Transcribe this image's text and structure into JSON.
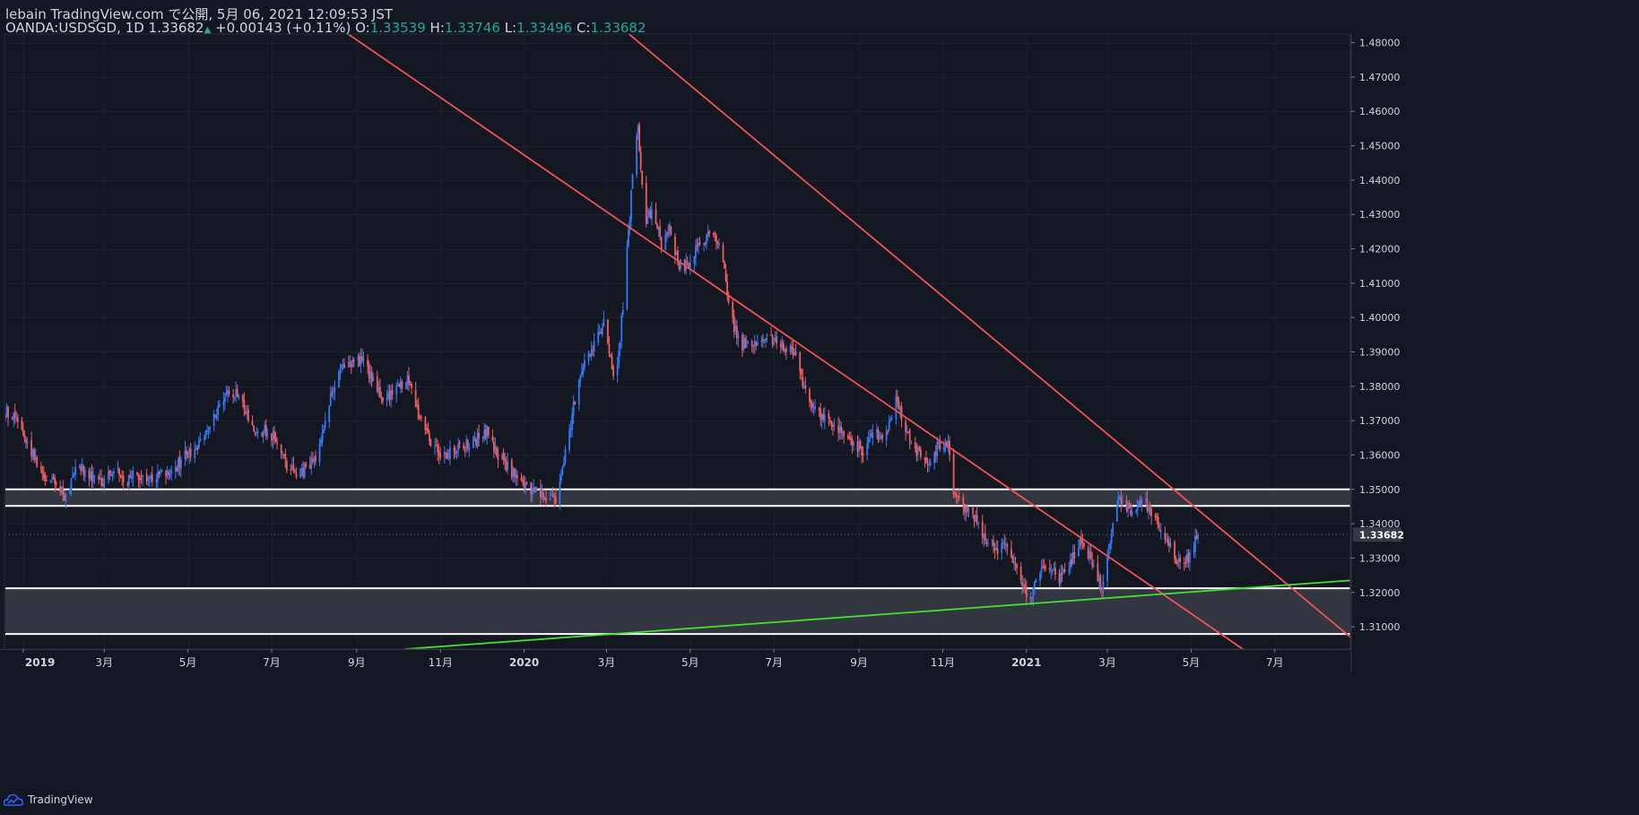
{
  "header": {
    "publish_line": "lebain TradingView.com で公開, 5月 06, 2021 12:09:53 JST",
    "symbol_interval": "OANDA:USDSGD, 1D",
    "last_price": "1.33682",
    "change": "+0.00143 (+0.11%)",
    "o_label": "O:",
    "o_value": "1.33539",
    "h_label": "H:",
    "h_value": "1.33746",
    "l_label": "L:",
    "l_value": "1.33496",
    "c_label": "C:",
    "c_value": "1.33682"
  },
  "footer": {
    "brand": "TradingView"
  },
  "colors": {
    "background": "#131722",
    "up_candle": "#3179f5",
    "down_candle": "#f05d5e",
    "channel_line": "#f05350",
    "support_line": "#43e033",
    "zone_fill": "#363a45",
    "zone_border": "#ffffff",
    "axis_text": "#d1d4dc"
  },
  "chart_data": {
    "type": "candlestick",
    "symbol": "OANDA:USDSGD",
    "interval": "1D",
    "ylim": [
      1.3035,
      1.4825
    ],
    "xlim": [
      "2018-12-19",
      "2021-08-25"
    ],
    "y_ticks": [
      "1.31000",
      "1.32000",
      "1.33000",
      "1.34000",
      "1.35000",
      "1.36000",
      "1.37000",
      "1.38000",
      "1.39000",
      "1.40000",
      "1.41000",
      "1.42000",
      "1.43000",
      "1.44000",
      "1.45000",
      "1.46000",
      "1.47000",
      "1.48000"
    ],
    "last_price_label": "1.33682",
    "x_ticks": [
      {
        "date": "2019-01-01",
        "label": "2019"
      },
      {
        "date": "2019-03-01",
        "label": "3月"
      },
      {
        "date": "2019-05-01",
        "label": "5月"
      },
      {
        "date": "2019-07-01",
        "label": "7月"
      },
      {
        "date": "2019-09-01",
        "label": "9月"
      },
      {
        "date": "2019-11-01",
        "label": "11月"
      },
      {
        "date": "2020-01-01",
        "label": "2020"
      },
      {
        "date": "2020-03-01",
        "label": "3月"
      },
      {
        "date": "2020-05-01",
        "label": "5月"
      },
      {
        "date": "2020-07-01",
        "label": "7月"
      },
      {
        "date": "2020-09-01",
        "label": "9月"
      },
      {
        "date": "2020-11-01",
        "label": "11月"
      },
      {
        "date": "2021-01-01",
        "label": "2021"
      },
      {
        "date": "2021-03-01",
        "label": "3月"
      },
      {
        "date": "2021-05-01",
        "label": "5月"
      },
      {
        "date": "2021-07-01",
        "label": "7月"
      }
    ],
    "close_path": [
      [
        "2018-12-19",
        1.373
      ],
      [
        "2018-12-27",
        1.371
      ],
      [
        "2019-01-04",
        1.364
      ],
      [
        "2019-01-12",
        1.356
      ],
      [
        "2019-01-20",
        1.353
      ],
      [
        "2019-02-01",
        1.348
      ],
      [
        "2019-02-10",
        1.357
      ],
      [
        "2019-02-18",
        1.354
      ],
      [
        "2019-02-28",
        1.351
      ],
      [
        "2019-03-08",
        1.357
      ],
      [
        "2019-03-16",
        1.353
      ],
      [
        "2019-03-24",
        1.354
      ],
      [
        "2019-04-01",
        1.352
      ],
      [
        "2019-04-10",
        1.355
      ],
      [
        "2019-04-20",
        1.355
      ],
      [
        "2019-04-28",
        1.36
      ],
      [
        "2019-05-08",
        1.362
      ],
      [
        "2019-05-18",
        1.369
      ],
      [
        "2019-05-26",
        1.377
      ],
      [
        "2019-06-06",
        1.378
      ],
      [
        "2019-06-16",
        1.368
      ],
      [
        "2019-06-26",
        1.367
      ],
      [
        "2019-07-04",
        1.364
      ],
      [
        "2019-07-12",
        1.357
      ],
      [
        "2019-07-20",
        1.355
      ],
      [
        "2019-07-28",
        1.356
      ],
      [
        "2019-08-05",
        1.362
      ],
      [
        "2019-08-13",
        1.377
      ],
      [
        "2019-08-21",
        1.385
      ],
      [
        "2019-08-29",
        1.387
      ],
      [
        "2019-09-06",
        1.388
      ],
      [
        "2019-09-14",
        1.38
      ],
      [
        "2019-09-22",
        1.375
      ],
      [
        "2019-09-30",
        1.38
      ],
      [
        "2019-10-08",
        1.382
      ],
      [
        "2019-10-16",
        1.372
      ],
      [
        "2019-10-26",
        1.362
      ],
      [
        "2019-11-05",
        1.36
      ],
      [
        "2019-11-15",
        1.362
      ],
      [
        "2019-11-25",
        1.364
      ],
      [
        "2019-12-05",
        1.367
      ],
      [
        "2019-12-13",
        1.36
      ],
      [
        "2019-12-21",
        1.356
      ],
      [
        "2019-12-31",
        1.351
      ],
      [
        "2020-01-08",
        1.35
      ],
      [
        "2020-01-16",
        1.347
      ],
      [
        "2020-01-24",
        1.347
      ],
      [
        "2020-02-01",
        1.362
      ],
      [
        "2020-02-09",
        1.381
      ],
      [
        "2020-02-15",
        1.388
      ],
      [
        "2020-02-22",
        1.393
      ],
      [
        "2020-02-28",
        1.399
      ],
      [
        "2020-03-06",
        1.382
      ],
      [
        "2020-03-10",
        1.389
      ],
      [
        "2020-03-14",
        1.409
      ],
      [
        "2020-03-18",
        1.43
      ],
      [
        "2020-03-21",
        1.447
      ],
      [
        "2020-03-24",
        1.455
      ],
      [
        "2020-03-29",
        1.427
      ],
      [
        "2020-04-04",
        1.432
      ],
      [
        "2020-04-10",
        1.421
      ],
      [
        "2020-04-16",
        1.426
      ],
      [
        "2020-04-22",
        1.416
      ],
      [
        "2020-04-29",
        1.415
      ],
      [
        "2020-05-06",
        1.42
      ],
      [
        "2020-05-14",
        1.424
      ],
      [
        "2020-05-22",
        1.423
      ],
      [
        "2020-05-31",
        1.4
      ],
      [
        "2020-06-06",
        1.392
      ],
      [
        "2020-06-14",
        1.392
      ],
      [
        "2020-06-22",
        1.393
      ],
      [
        "2020-06-30",
        1.394
      ],
      [
        "2020-07-08",
        1.392
      ],
      [
        "2020-07-16",
        1.389
      ],
      [
        "2020-07-22",
        1.38
      ],
      [
        "2020-07-30",
        1.374
      ],
      [
        "2020-08-07",
        1.371
      ],
      [
        "2020-08-15",
        1.369
      ],
      [
        "2020-08-25",
        1.365
      ],
      [
        "2020-09-04",
        1.361
      ],
      [
        "2020-09-12",
        1.367
      ],
      [
        "2020-09-20",
        1.364
      ],
      [
        "2020-09-28",
        1.377
      ],
      [
        "2020-10-04",
        1.369
      ],
      [
        "2020-10-12",
        1.361
      ],
      [
        "2020-10-20",
        1.358
      ],
      [
        "2020-10-28",
        1.362
      ],
      [
        "2020-11-05",
        1.363
      ],
      [
        "2020-11-09",
        1.35
      ],
      [
        "2020-11-17",
        1.345
      ],
      [
        "2020-11-25",
        1.341
      ],
      [
        "2020-12-03",
        1.335
      ],
      [
        "2020-12-11",
        1.332
      ],
      [
        "2020-12-19",
        1.334
      ],
      [
        "2020-12-27",
        1.324
      ],
      [
        "2021-01-04",
        1.318
      ],
      [
        "2021-01-10",
        1.325
      ],
      [
        "2021-01-18",
        1.327
      ],
      [
        "2021-01-26",
        1.324
      ],
      [
        "2021-02-05",
        1.331
      ],
      [
        "2021-02-11",
        1.336
      ],
      [
        "2021-02-19",
        1.327
      ],
      [
        "2021-02-25",
        1.322
      ],
      [
        "2021-03-01",
        1.33
      ],
      [
        "2021-03-05",
        1.341
      ],
      [
        "2021-03-09",
        1.347
      ],
      [
        "2021-03-15",
        1.344
      ],
      [
        "2021-03-21",
        1.345
      ],
      [
        "2021-03-29",
        1.346
      ],
      [
        "2021-04-06",
        1.341
      ],
      [
        "2021-04-12",
        1.337
      ],
      [
        "2021-04-18",
        1.331
      ],
      [
        "2021-04-24",
        1.327
      ],
      [
        "2021-04-30",
        1.331
      ],
      [
        "2021-05-06",
        1.33682
      ]
    ],
    "drawings": {
      "channel_upper": [
        [
          "2020-01-16",
          1.503
        ],
        [
          "2021-08-25",
          1.307
        ]
      ],
      "channel_lower": [
        [
          "2019-08-24",
          1.483
        ],
        [
          "2021-08-25",
          1.282
        ]
      ],
      "support_trendline": [
        [
          "2019-10-06",
          1.3035
        ],
        [
          "2021-08-25",
          1.3235
        ]
      ],
      "zone_upper": [
        1.3452,
        1.35
      ],
      "zone_lower": [
        1.3079,
        1.3212
      ]
    }
  }
}
